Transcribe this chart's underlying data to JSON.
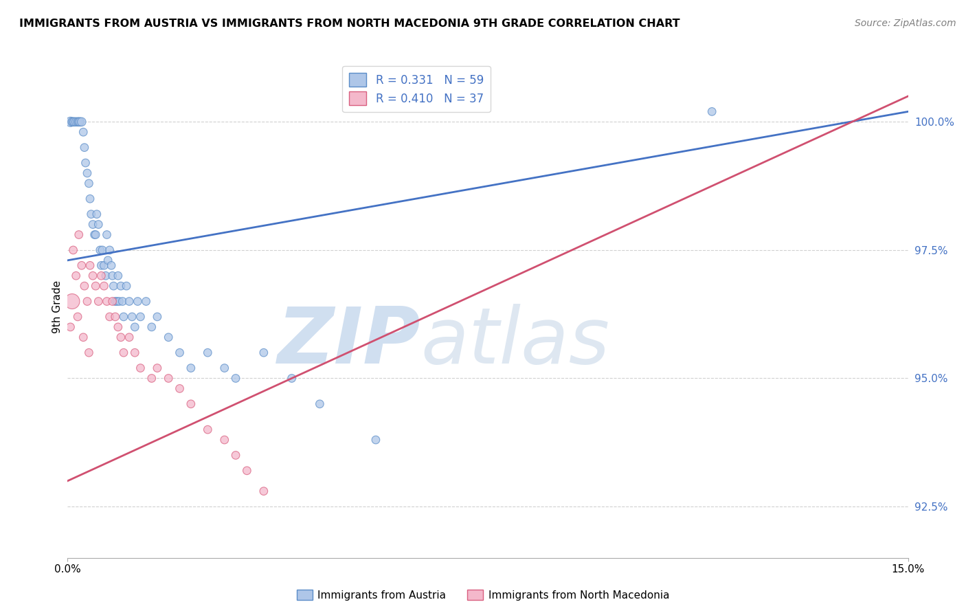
{
  "title": "IMMIGRANTS FROM AUSTRIA VS IMMIGRANTS FROM NORTH MACEDONIA 9TH GRADE CORRELATION CHART",
  "source_text": "Source: ZipAtlas.com",
  "ylabel": "9th Grade",
  "xlim": [
    0.0,
    15.0
  ],
  "ylim": [
    91.5,
    101.3
  ],
  "legend_austria": "R = 0.331   N = 59",
  "legend_macedonia": "R = 0.410   N = 37",
  "color_austria_fill": "#aec6e8",
  "color_austria_edge": "#5b8dc8",
  "color_macedonia_fill": "#f4b8cb",
  "color_macedonia_edge": "#d96080",
  "color_austria_line": "#4472c4",
  "color_macedonia_line": "#d05070",
  "watermark_zip": "ZIP",
  "watermark_atlas": "atlas",
  "watermark_color": "#d0dff0",
  "ytick_vals": [
    92.5,
    95.0,
    97.5,
    100.0
  ],
  "austria_line_x0": 0.0,
  "austria_line_y0": 97.3,
  "austria_line_x1": 15.0,
  "austria_line_y1": 100.2,
  "macedonia_line_x0": 0.0,
  "macedonia_line_y0": 93.0,
  "macedonia_line_x1": 15.0,
  "macedonia_line_y1": 100.5,
  "austria_x": [
    0.05,
    0.08,
    0.1,
    0.12,
    0.15,
    0.18,
    0.2,
    0.22,
    0.25,
    0.28,
    0.3,
    0.32,
    0.35,
    0.38,
    0.4,
    0.42,
    0.45,
    0.48,
    0.5,
    0.52,
    0.55,
    0.58,
    0.6,
    0.62,
    0.65,
    0.68,
    0.7,
    0.72,
    0.75,
    0.78,
    0.8,
    0.82,
    0.85,
    0.88,
    0.9,
    0.92,
    0.95,
    0.98,
    1.0,
    1.05,
    1.1,
    1.15,
    1.2,
    1.25,
    1.3,
    1.4,
    1.5,
    1.6,
    1.8,
    2.0,
    2.2,
    2.5,
    2.8,
    3.0,
    3.5,
    4.0,
    4.5,
    5.5,
    11.5
  ],
  "austria_y": [
    100.0,
    100.0,
    100.0,
    100.0,
    100.0,
    100.0,
    100.0,
    100.0,
    100.0,
    99.8,
    99.5,
    99.2,
    99.0,
    98.8,
    98.5,
    98.2,
    98.0,
    97.8,
    97.8,
    98.2,
    98.0,
    97.5,
    97.2,
    97.5,
    97.2,
    97.0,
    97.8,
    97.3,
    97.5,
    97.2,
    97.0,
    96.8,
    96.5,
    96.5,
    97.0,
    96.5,
    96.8,
    96.5,
    96.2,
    96.8,
    96.5,
    96.2,
    96.0,
    96.5,
    96.2,
    96.5,
    96.0,
    96.2,
    95.8,
    95.5,
    95.2,
    95.5,
    95.2,
    95.0,
    95.5,
    95.0,
    94.5,
    93.8,
    100.2
  ],
  "austria_sizes": [
    100,
    80,
    80,
    80,
    80,
    80,
    80,
    80,
    80,
    70,
    70,
    70,
    70,
    70,
    70,
    70,
    70,
    70,
    70,
    70,
    70,
    70,
    70,
    70,
    70,
    70,
    70,
    70,
    70,
    70,
    70,
    70,
    70,
    70,
    70,
    70,
    70,
    70,
    70,
    70,
    70,
    70,
    70,
    70,
    70,
    70,
    70,
    70,
    70,
    70,
    70,
    70,
    70,
    70,
    70,
    70,
    70,
    70,
    70
  ],
  "macedonia_x": [
    0.05,
    0.1,
    0.15,
    0.2,
    0.25,
    0.3,
    0.35,
    0.4,
    0.45,
    0.5,
    0.55,
    0.6,
    0.65,
    0.7,
    0.75,
    0.8,
    0.85,
    0.9,
    0.95,
    1.0,
    1.1,
    1.2,
    1.3,
    1.5,
    1.6,
    1.8,
    2.0,
    2.2,
    2.5,
    2.8,
    3.0,
    3.2,
    3.5,
    0.08,
    0.18,
    0.28,
    0.38
  ],
  "macedonia_y": [
    96.0,
    97.5,
    97.0,
    97.8,
    97.2,
    96.8,
    96.5,
    97.2,
    97.0,
    96.8,
    96.5,
    97.0,
    96.8,
    96.5,
    96.2,
    96.5,
    96.2,
    96.0,
    95.8,
    95.5,
    95.8,
    95.5,
    95.2,
    95.0,
    95.2,
    95.0,
    94.8,
    94.5,
    94.0,
    93.8,
    93.5,
    93.2,
    92.8,
    96.5,
    96.2,
    95.8,
    95.5
  ],
  "macedonia_sizes": [
    70,
    70,
    70,
    70,
    70,
    70,
    70,
    70,
    70,
    70,
    70,
    70,
    70,
    70,
    70,
    70,
    70,
    70,
    70,
    70,
    70,
    70,
    70,
    70,
    70,
    70,
    70,
    70,
    70,
    70,
    70,
    70,
    70,
    250,
    70,
    70,
    70
  ]
}
